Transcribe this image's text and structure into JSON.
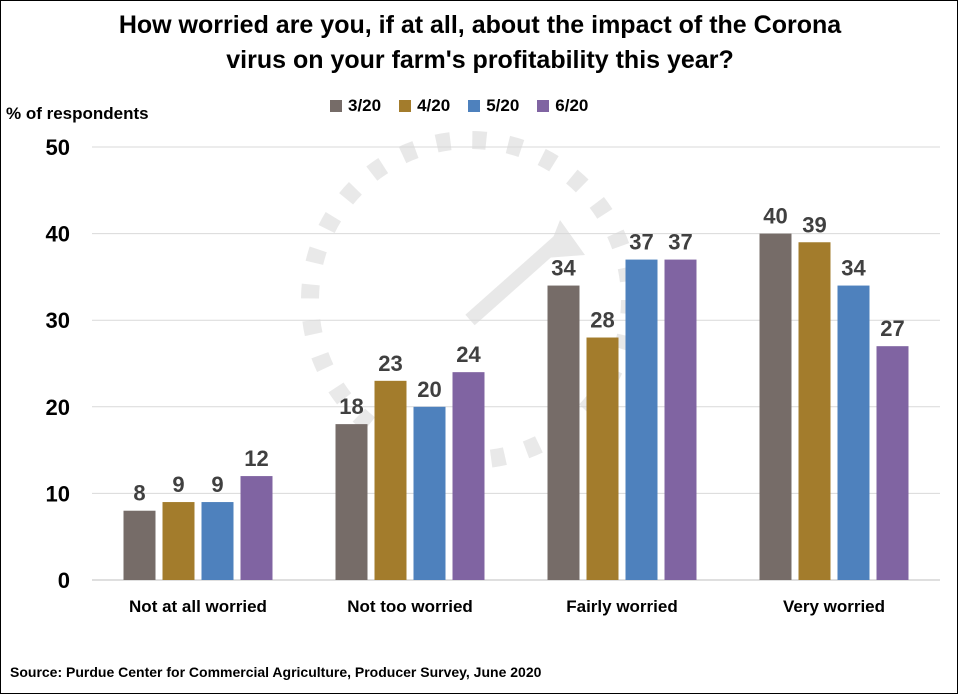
{
  "title_line1": "How worried are you, if at all, about the impact of the Corona",
  "title_line2": "virus on your farm's profitability this year?",
  "y_axis_label": "% of respondents",
  "source": "Source: Purdue Center for Commercial Agriculture, Producer Survey, June 2020",
  "colors": {
    "series": [
      "#766c68",
      "#a37c2c",
      "#4e81bd",
      "#8064a2"
    ],
    "grid": "#d9d9d9",
    "axis": "#bfbfbf",
    "value_label": "#404040",
    "watermark": "#bfbfbf"
  },
  "chart_data": {
    "type": "bar",
    "categories": [
      "Not at all worried",
      "Not too worried",
      "Fairly worried",
      "Very worried"
    ],
    "series": [
      {
        "name": "3/20",
        "values": [
          8,
          18,
          34,
          40
        ]
      },
      {
        "name": "4/20",
        "values": [
          9,
          23,
          28,
          39
        ]
      },
      {
        "name": "5/20",
        "values": [
          9,
          20,
          37,
          34
        ]
      },
      {
        "name": "6/20",
        "values": [
          12,
          24,
          37,
          27
        ]
      }
    ],
    "ylabel": "% of respondents",
    "ylim": [
      0,
      50
    ],
    "yticks": [
      0,
      10,
      20,
      30,
      40,
      50
    ],
    "grid": true,
    "legend_position": "top"
  }
}
